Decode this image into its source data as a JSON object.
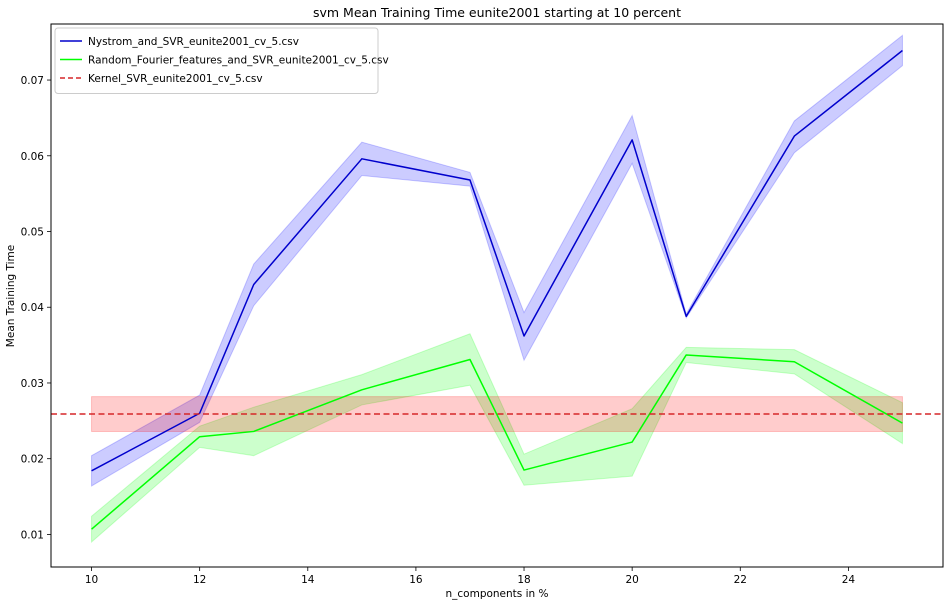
{
  "chart_data": {
    "type": "line",
    "title": "svm Mean Training Time eunite2001 starting at 10 percent",
    "xlabel": "n_components in %",
    "ylabel": "Mean Training Time",
    "xlim": [
      9.25,
      25.75
    ],
    "ylim": [
      0.0057,
      0.0774
    ],
    "xticks": [
      10,
      12,
      14,
      16,
      18,
      20,
      22,
      24
    ],
    "yticks": [
      0.01,
      0.02,
      0.03,
      0.04,
      0.05,
      0.06,
      0.07
    ],
    "ytick_labels": [
      "0.01",
      "0.02",
      "0.03",
      "0.04",
      "0.05",
      "0.06",
      "0.07"
    ],
    "grid": false,
    "legend_position": "top-left",
    "series": [
      {
        "name": "Nystrom_and_SVR_eunite2001_cv_5.csv",
        "color": "#0000cc",
        "band_color": "#0000ff",
        "style": "solid",
        "x": [
          10,
          12,
          13,
          15,
          17,
          18,
          20,
          21,
          23,
          25
        ],
        "y": [
          0.0184,
          0.026,
          0.043,
          0.0596,
          0.0568,
          0.0362,
          0.0621,
          0.0388,
          0.0626,
          0.0739
        ],
        "lower": [
          0.0164,
          0.0248,
          0.0402,
          0.0574,
          0.056,
          0.033,
          0.059,
          0.0386,
          0.0604,
          0.0719
        ],
        "upper": [
          0.0204,
          0.0284,
          0.0457,
          0.0618,
          0.0578,
          0.0393,
          0.0653,
          0.0391,
          0.0646,
          0.0759
        ]
      },
      {
        "name": "Random_Fourier_features_and_SVR_eunite2001_cv_5.csv",
        "color": "#00ff00",
        "band_color": "#00ff00",
        "style": "solid",
        "x": [
          10,
          12,
          13,
          15,
          17,
          18,
          20,
          21,
          23,
          25
        ],
        "y": [
          0.0107,
          0.0229,
          0.0236,
          0.0291,
          0.0331,
          0.0185,
          0.0222,
          0.0337,
          0.0328,
          0.0247
        ],
        "lower": [
          0.009,
          0.0215,
          0.0204,
          0.0271,
          0.0297,
          0.0165,
          0.0177,
          0.0327,
          0.0312,
          0.022
        ],
        "upper": [
          0.0124,
          0.0243,
          0.0268,
          0.0311,
          0.0365,
          0.0206,
          0.0266,
          0.0347,
          0.0344,
          0.0274
        ]
      },
      {
        "name": "Kernel_SVR_eunite2001_cv_5.csv",
        "color": "#d62728",
        "band_color": "#ff0000",
        "style": "dashed",
        "constant": 0.0259,
        "lower": 0.0236,
        "upper": 0.0282,
        "band_x": [
          10,
          25
        ]
      }
    ]
  }
}
